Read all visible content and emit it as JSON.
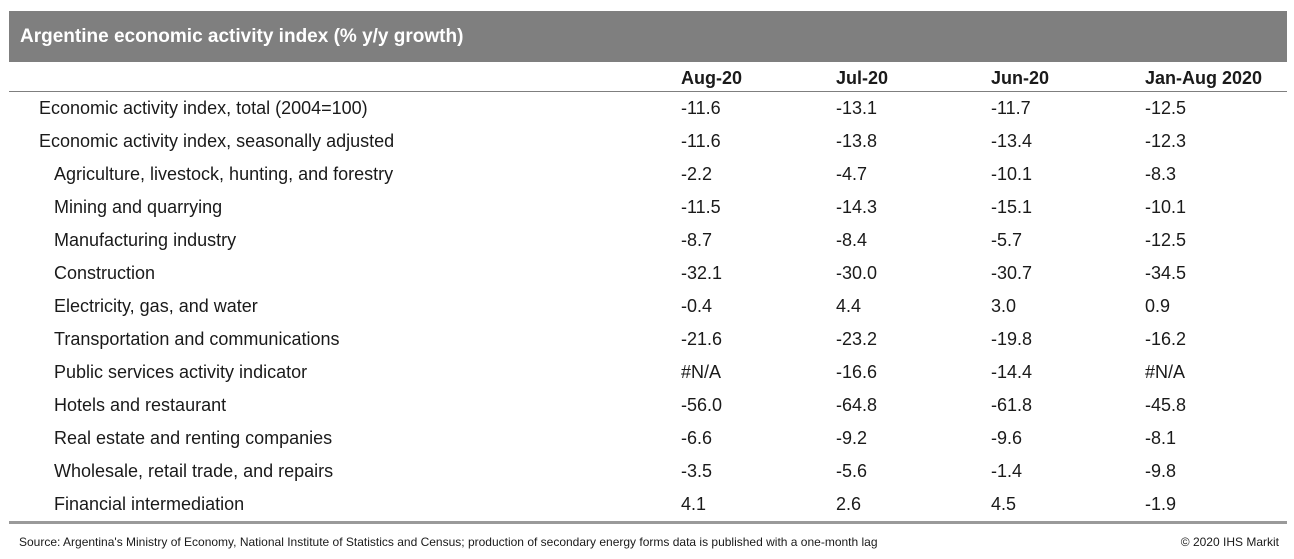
{
  "title": "Argentine economic activity index (% y/y growth)",
  "columns": [
    "Aug-20",
    "Jul-20",
    "Jun-20",
    "Jan-Aug 2020"
  ],
  "rows": [
    {
      "label": "Economic activity index, total (2004=100)",
      "indent": false,
      "values": [
        "-11.6",
        "-13.1",
        "-11.7",
        "-12.5"
      ]
    },
    {
      "label": "Economic activity index, seasonally adjusted",
      "indent": false,
      "values": [
        "-11.6",
        "-13.8",
        "-13.4",
        "-12.3"
      ]
    },
    {
      "label": "Agriculture, livestock, hunting, and forestry",
      "indent": true,
      "values": [
        "-2.2",
        "-4.7",
        "-10.1",
        "-8.3"
      ]
    },
    {
      "label": "Mining and quarrying",
      "indent": true,
      "values": [
        "-11.5",
        "-14.3",
        "-15.1",
        "-10.1"
      ]
    },
    {
      "label": "Manufacturing industry",
      "indent": true,
      "values": [
        "-8.7",
        "-8.4",
        "-5.7",
        "-12.5"
      ]
    },
    {
      "label": "Construction",
      "indent": true,
      "values": [
        "-32.1",
        "-30.0",
        "-30.7",
        "-34.5"
      ]
    },
    {
      "label": "Electricity, gas, and water",
      "indent": true,
      "values": [
        "-0.4",
        "4.4",
        "3.0",
        "0.9"
      ]
    },
    {
      "label": "Transportation and communications",
      "indent": true,
      "values": [
        "-21.6",
        "-23.2",
        "-19.8",
        "-16.2"
      ]
    },
    {
      "label": "Public services activity indicator",
      "indent": true,
      "values": [
        "#N/A",
        "-16.6",
        "-14.4",
        "#N/A"
      ]
    },
    {
      "label": "Hotels and restaurant",
      "indent": true,
      "values": [
        "-56.0",
        "-64.8",
        "-61.8",
        "-45.8"
      ]
    },
    {
      "label": "Real estate and renting companies",
      "indent": true,
      "values": [
        "-6.6",
        "-9.2",
        "-9.6",
        "-8.1"
      ]
    },
    {
      "label": "Wholesale, retail trade, and repairs",
      "indent": true,
      "values": [
        "-3.5",
        "-5.6",
        "-1.4",
        "-9.8"
      ]
    },
    {
      "label": "Financial intermediation",
      "indent": true,
      "values": [
        "4.1",
        "2.6",
        "4.5",
        "-1.9"
      ]
    }
  ],
  "footer": {
    "source": "Source: Argentina's Ministry of Economy, National Institute of Statistics and Census; production of secondary energy forms data is published with a one-month lag",
    "copyright": "© 2020 IHS Markit"
  },
  "colors": {
    "title_bar": "#7f7f7f",
    "title_text": "#ffffff",
    "rule": "#9a9a9a"
  },
  "chart_data": {
    "type": "table",
    "title": "Argentine economic activity index (% y/y growth)",
    "columns": [
      "Aug-20",
      "Jul-20",
      "Jun-20",
      "Jan-Aug 2020"
    ],
    "row_labels": [
      "Economic activity index, total (2004=100)",
      "Economic activity index, seasonally adjusted",
      "Agriculture, livestock, hunting, and forestry",
      "Mining and quarrying",
      "Manufacturing industry",
      "Construction",
      "Electricity, gas, and water",
      "Transportation and communications",
      "Public services activity indicator",
      "Hotels and restaurant",
      "Real estate and renting companies",
      "Wholesale, retail trade, and repairs",
      "Financial intermediation"
    ],
    "values": [
      [
        -11.6,
        -13.1,
        -11.7,
        -12.5
      ],
      [
        -11.6,
        -13.8,
        -13.4,
        -12.3
      ],
      [
        -2.2,
        -4.7,
        -10.1,
        -8.3
      ],
      [
        -11.5,
        -14.3,
        -15.1,
        -10.1
      ],
      [
        -8.7,
        -8.4,
        -5.7,
        -12.5
      ],
      [
        -32.1,
        -30.0,
        -30.7,
        -34.5
      ],
      [
        -0.4,
        4.4,
        3.0,
        0.9
      ],
      [
        -21.6,
        -23.2,
        -19.8,
        -16.2
      ],
      [
        null,
        -16.6,
        -14.4,
        null
      ],
      [
        -56.0,
        -64.8,
        -61.8,
        -45.8
      ],
      [
        -6.6,
        -9.2,
        -9.6,
        -8.1
      ],
      [
        -3.5,
        -5.6,
        -1.4,
        -9.8
      ],
      [
        4.1,
        2.6,
        4.5,
        -1.9
      ]
    ]
  }
}
